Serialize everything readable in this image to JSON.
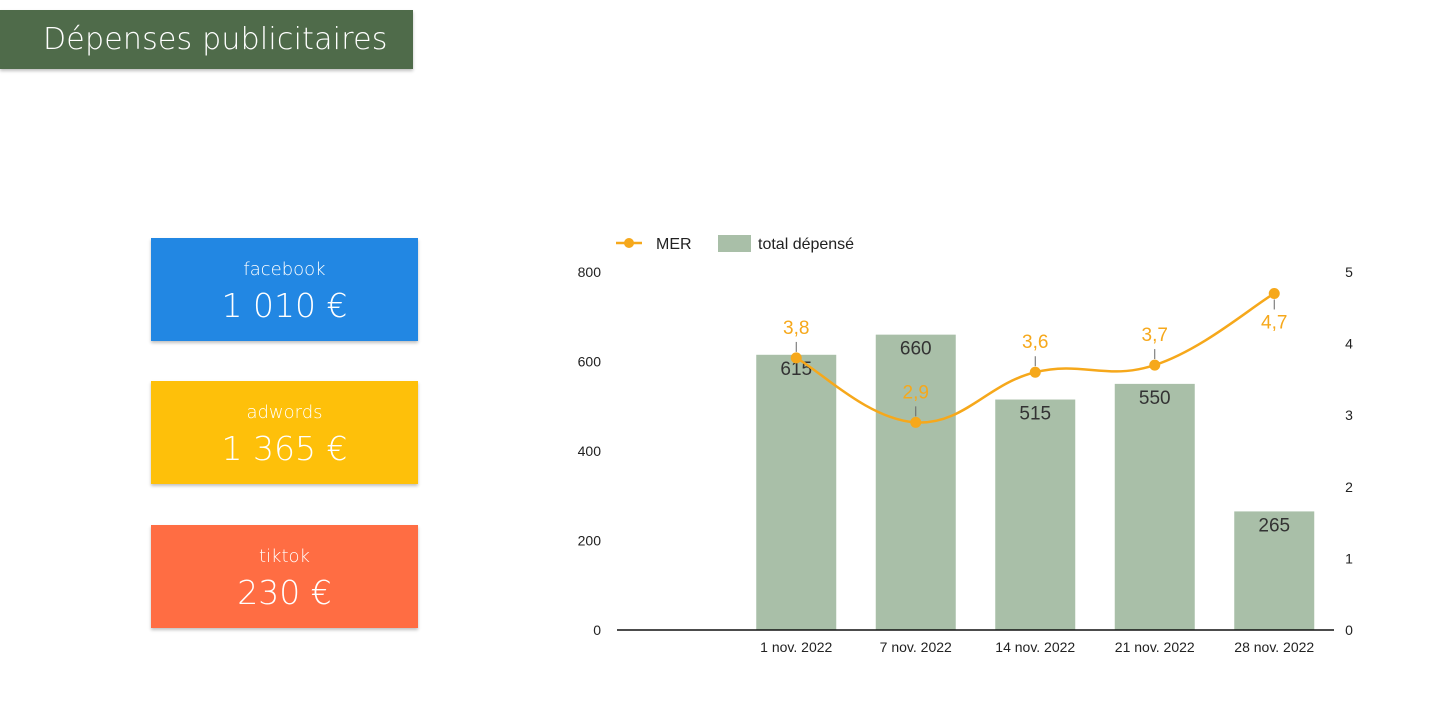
{
  "header": {
    "title": "Dépenses publicitaires"
  },
  "kpis": [
    {
      "label": "facebook",
      "value": "1 010 €",
      "color": "#2287e3"
    },
    {
      "label": "adwords",
      "value": "1 365 €",
      "color": "#fec00a"
    },
    {
      "label": "tiktok",
      "value": "230 €",
      "color": "#ff6d43"
    }
  ],
  "chart_data": {
    "type": "bar",
    "title": "",
    "categories": [
      "1 nov. 2022",
      "7 nov. 2022",
      "14 nov. 2022",
      "21 nov. 2022",
      "28 nov. 2022"
    ],
    "series": [
      {
        "name": "total dépensé",
        "type": "bar",
        "axis": "left",
        "color": "#a9bfa8",
        "values": [
          615,
          660,
          515,
          550,
          265
        ],
        "labels": [
          "615",
          "660",
          "515",
          "550",
          "265"
        ]
      },
      {
        "name": "MER",
        "type": "line",
        "axis": "right",
        "color": "#f6a81b",
        "values": [
          3.8,
          2.9,
          3.6,
          3.7,
          4.7
        ],
        "labels": [
          "3,8",
          "2,9",
          "3,6",
          "3,7",
          "4,7"
        ]
      }
    ],
    "y_left": {
      "min": 0,
      "max": 800,
      "ticks": [
        "0",
        "200",
        "400",
        "600",
        "800"
      ]
    },
    "y_right": {
      "min": 0,
      "max": 5,
      "ticks": [
        "0",
        "1",
        "2",
        "3",
        "4",
        "5"
      ]
    },
    "legend": {
      "position": "top-left",
      "items": [
        "MER",
        "total dépensé"
      ]
    },
    "grid": false
  }
}
